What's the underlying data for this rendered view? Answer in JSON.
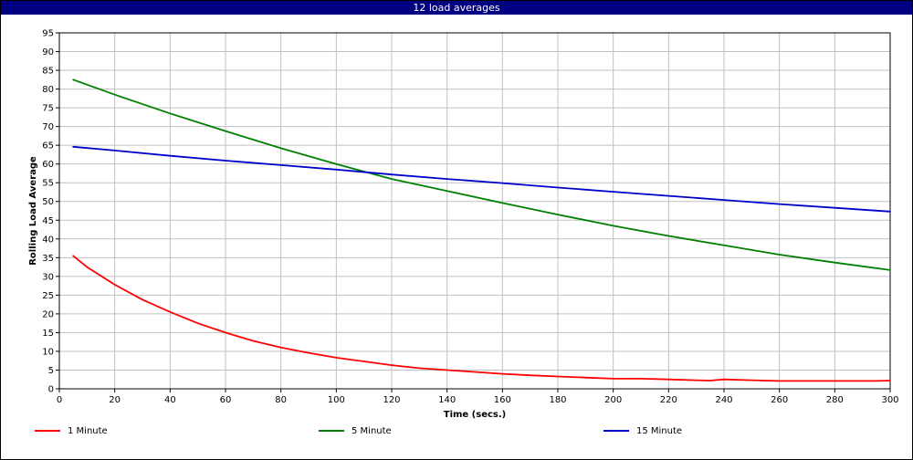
{
  "window": {
    "title": "12 load averages"
  },
  "colors": {
    "title_bg": "#000080",
    "grid": "#c0c0c0"
  },
  "chart_data": {
    "type": "line",
    "title": "12 load averages",
    "xlabel": "Time (secs.)",
    "ylabel": "Rolling Load Average",
    "xlim": [
      0,
      300
    ],
    "ylim": [
      0,
      95
    ],
    "xticks": [
      0,
      20,
      40,
      60,
      80,
      100,
      120,
      140,
      160,
      180,
      200,
      220,
      240,
      260,
      280,
      300
    ],
    "yticks": [
      0,
      5,
      10,
      15,
      20,
      25,
      30,
      35,
      40,
      45,
      50,
      55,
      60,
      65,
      70,
      75,
      80,
      85,
      90,
      95
    ],
    "grid": true,
    "legend_position": "bottom",
    "series": [
      {
        "name": "1 Minute",
        "color": "#ff0000",
        "x": [
          5,
          10,
          20,
          30,
          40,
          50,
          60,
          70,
          80,
          90,
          100,
          110,
          120,
          130,
          140,
          150,
          160,
          170,
          180,
          190,
          200,
          210,
          220,
          230,
          235,
          240,
          250,
          260,
          270,
          280,
          290,
          295,
          300
        ],
        "y": [
          35.5,
          32.5,
          27.8,
          23.8,
          20.5,
          17.5,
          15.0,
          12.8,
          11.0,
          9.6,
          8.3,
          7.3,
          6.3,
          5.5,
          5.0,
          4.5,
          4.0,
          3.6,
          3.3,
          3.0,
          2.7,
          2.7,
          2.5,
          2.3,
          2.2,
          2.5,
          2.3,
          2.1,
          2.1,
          2.1,
          2.1,
          2.1,
          2.2
        ]
      },
      {
        "name": "5 Minute",
        "color": "#008000",
        "x": [
          5,
          20,
          40,
          60,
          80,
          100,
          120,
          140,
          160,
          180,
          200,
          220,
          240,
          260,
          280,
          300
        ],
        "y": [
          82.5,
          78.5,
          73.5,
          68.8,
          64.2,
          60.0,
          56.0,
          52.8,
          49.6,
          46.5,
          43.5,
          40.8,
          38.3,
          35.8,
          33.7,
          31.7
        ]
      },
      {
        "name": "15 Minute",
        "color": "#0000cc",
        "x": [
          5,
          20,
          40,
          60,
          80,
          100,
          120,
          140,
          160,
          180,
          200,
          220,
          240,
          260,
          280,
          300
        ],
        "y": [
          64.6,
          63.6,
          62.2,
          60.9,
          59.7,
          58.5,
          57.2,
          56.0,
          54.9,
          53.7,
          52.6,
          51.5,
          50.4,
          49.3,
          48.3,
          47.3
        ]
      }
    ]
  }
}
